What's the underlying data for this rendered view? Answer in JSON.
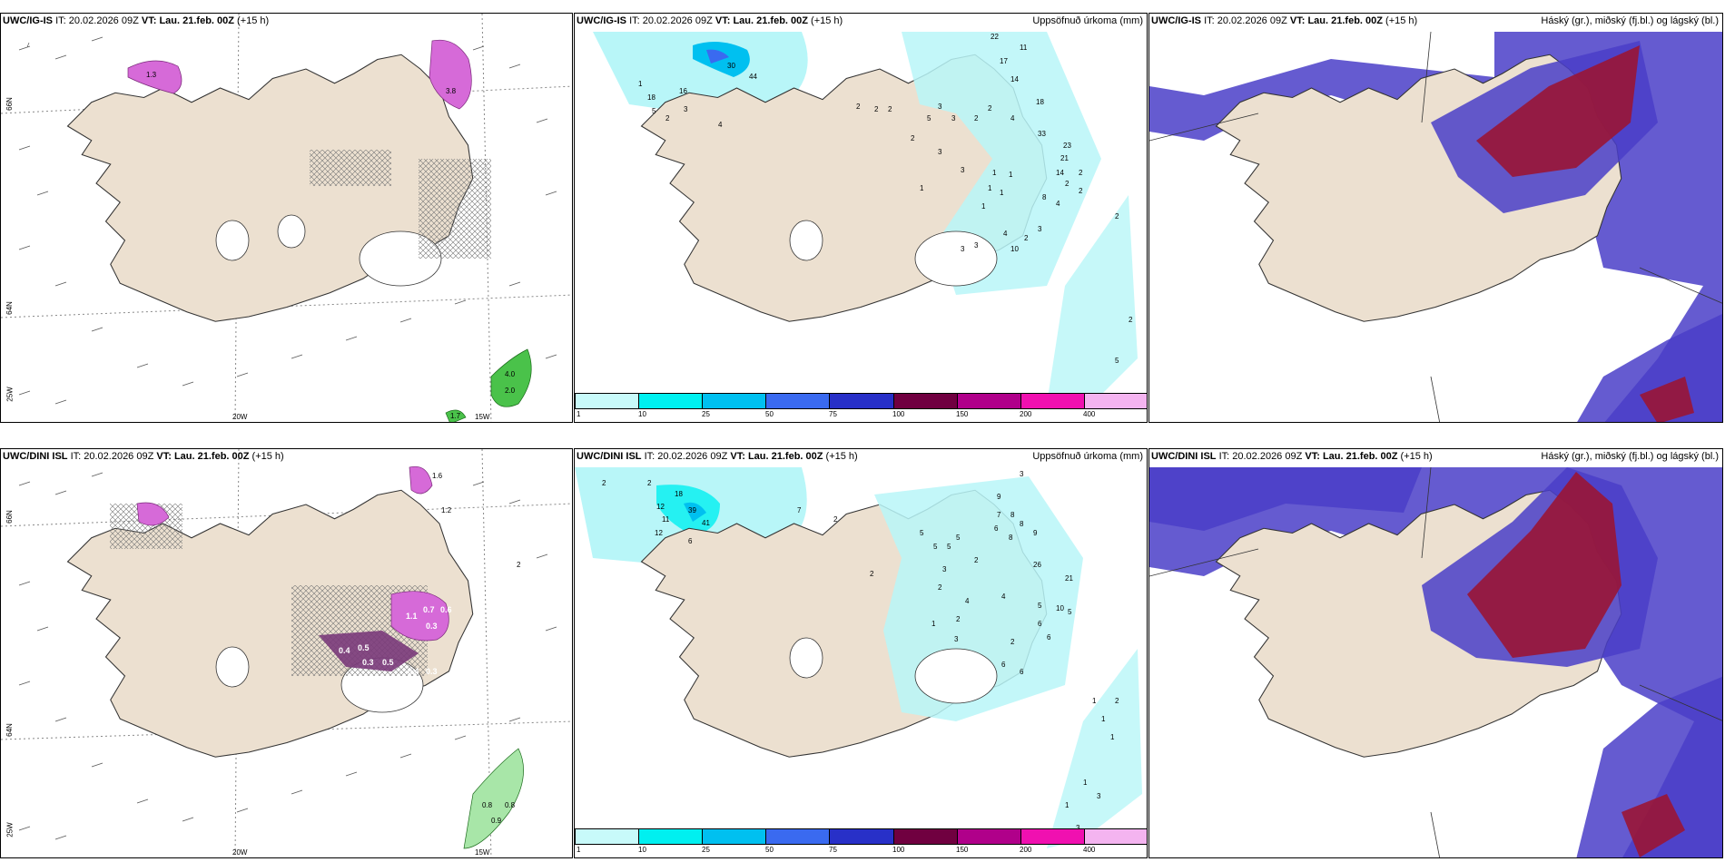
{
  "rows": [
    {
      "model": "UWC/IG-IS",
      "it_label": "IT:",
      "it_value": "20.02.2026 09Z",
      "vt_label": "VT:",
      "vt_value": "Lau. 21.feb. 00Z",
      "lead": "(+15 h)",
      "precip_numbers": [
        "22",
        "11",
        "17",
        "14",
        "18",
        "33",
        "23",
        "21",
        "14",
        "2",
        "2",
        "2",
        "8",
        "4",
        "2",
        "3",
        "2",
        "1",
        "1",
        "1",
        "1",
        "1",
        "1",
        "2",
        "3",
        "4",
        "3",
        "3",
        "3",
        "4",
        "3",
        "10",
        "2",
        "2",
        "3",
        "5",
        "2",
        "2",
        "2",
        "5",
        "4",
        "1",
        "18",
        "16",
        "5",
        "2",
        "3",
        "30",
        "44",
        "4",
        "2"
      ],
      "wind_values": [
        "3.8",
        "1.3",
        "4.0",
        "2.0",
        "1.7"
      ]
    },
    {
      "model": "UWC/DINI ISL",
      "it_label": "IT:",
      "it_value": "20.02.2026 09Z",
      "vt_label": "VT:",
      "vt_value": "Lau. 21.feb. 00Z",
      "lead": "(+15 h)",
      "precip_numbers": [
        "3",
        "9",
        "7",
        "8",
        "6",
        "8",
        "9",
        "8",
        "26",
        "21",
        "10",
        "5",
        "5",
        "6",
        "2",
        "4",
        "4",
        "5",
        "5",
        "5",
        "5",
        "3",
        "2",
        "2",
        "1",
        "3",
        "2",
        "6",
        "6",
        "6",
        "1",
        "1",
        "2",
        "1",
        "1",
        "1",
        "3",
        "3",
        "2",
        "7",
        "2",
        "18",
        "12",
        "39",
        "41",
        "11",
        "12",
        "6",
        "2",
        "2"
      ],
      "wind_values": [
        "1.6",
        "1.2",
        "2",
        "0.7",
        "0.6",
        "0.3",
        "1.1",
        "0.4",
        "0.5",
        "0.3",
        "0.5",
        "0.4",
        "0.3",
        "0.8",
        "0.9",
        "0.8"
      ]
    }
  ],
  "precip_title": "Uppsöfnuð úrkoma (mm)",
  "cloud_title": "Háský (gr.), miðský (fj.bl.) og lágský (bl.)",
  "colorbar_ticks": [
    "1",
    "10",
    "25",
    "50",
    "75",
    "100",
    "150",
    "200",
    "400"
  ],
  "colorbar_colors": [
    "#c8fafa",
    "#00f0f0",
    "#00c0f0",
    "#3a6af0",
    "#2830c8",
    "#700040",
    "#b0008a",
    "#f010b0",
    "#f4b4f0"
  ],
  "axis_labels": {
    "lat66": "66N",
    "lat64": "64N",
    "lon20": "20W",
    "lon15": "15W",
    "lon25": "25W"
  },
  "colors": {
    "land": "#ece0d0",
    "precip_light": "#b8f6f8",
    "cloud_high": "#9a1535",
    "cloud_mid": "#4a3ec8"
  }
}
